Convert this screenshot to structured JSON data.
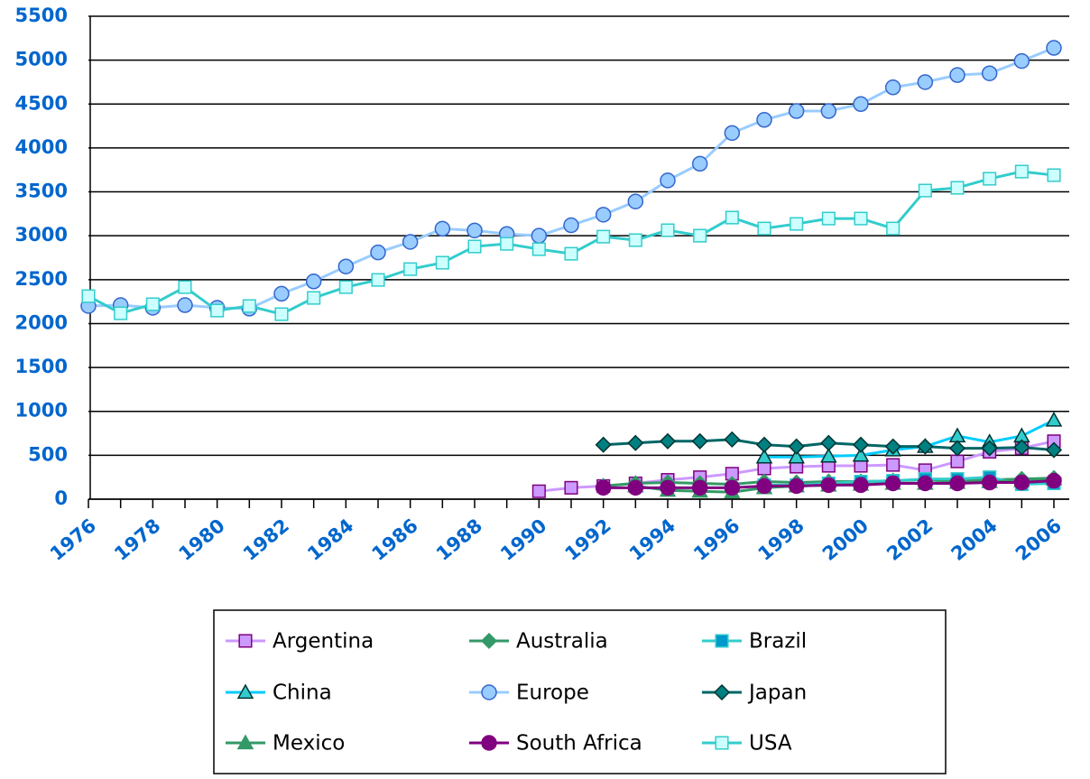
{
  "chart_data": {
    "type": "line",
    "categories": [
      1976,
      null,
      1978,
      null,
      1980,
      null,
      1982,
      null,
      1984,
      null,
      1986,
      null,
      1988,
      null,
      1990,
      null,
      1992,
      null,
      1994,
      null,
      1996,
      null,
      1998,
      null,
      2000,
      null,
      2002,
      null,
      2004,
      null,
      2006
    ],
    "ylim": [
      0,
      5500
    ],
    "yticks": [
      0,
      500,
      1000,
      1500,
      2000,
      2500,
      3000,
      3500,
      4000,
      4500,
      5000,
      5500
    ],
    "grid": true,
    "legend": "bottom",
    "series": [
      {
        "name": "Argentina",
        "color": "#cc99ff",
        "marker": "square",
        "marker_color": "#cc99ff",
        "marker_edge": "#800080",
        "values": [
          null,
          null,
          null,
          null,
          null,
          null,
          null,
          null,
          null,
          null,
          null,
          null,
          null,
          null,
          90,
          130,
          150,
          180,
          220,
          250,
          290,
          350,
          370,
          380,
          380,
          390,
          330,
          430,
          540,
          580,
          660
        ]
      },
      {
        "name": "Australia",
        "color": "#339966",
        "marker": "diamond",
        "marker_color": "#339966",
        "marker_edge": "#339966",
        "values": [
          null,
          null,
          null,
          null,
          null,
          null,
          null,
          null,
          null,
          null,
          null,
          null,
          null,
          null,
          null,
          null,
          150,
          180,
          190,
          180,
          170,
          200,
          190,
          200,
          200,
          210,
          220,
          210,
          220,
          230,
          240
        ]
      },
      {
        "name": "Brazil",
        "color": "#33cccc",
        "marker": "square",
        "marker_color": "#0099cc",
        "marker_edge": "#33cccc",
        "values": [
          null,
          null,
          null,
          null,
          null,
          null,
          null,
          null,
          null,
          null,
          null,
          null,
          null,
          null,
          null,
          null,
          null,
          null,
          null,
          null,
          null,
          160,
          160,
          180,
          200,
          210,
          230,
          230,
          250,
          170,
          180
        ]
      },
      {
        "name": "China",
        "color": "#00ccff",
        "marker": "triangle",
        "marker_color": "#33cccc",
        "marker_edge": "#003333",
        "values": [
          null,
          null,
          null,
          null,
          null,
          null,
          null,
          null,
          null,
          null,
          null,
          null,
          null,
          null,
          null,
          null,
          null,
          null,
          null,
          null,
          null,
          480,
          480,
          490,
          500,
          560,
          600,
          720,
          650,
          720,
          900
        ]
      },
      {
        "name": "Europe",
        "color": "#99ccff",
        "marker": "circle",
        "marker_color": "#99ccff",
        "marker_edge": "#3366cc",
        "values": [
          2200,
          2210,
          2180,
          2210,
          2180,
          2170,
          2340,
          2480,
          2650,
          2810,
          2930,
          3080,
          3060,
          3020,
          3000,
          3120,
          3240,
          3390,
          3630,
          3820,
          4170,
          4320,
          4420,
          4420,
          4500,
          4690,
          4750,
          4830,
          4850,
          4990,
          5140
        ]
      },
      {
        "name": "Japan",
        "color": "#006666",
        "marker": "diamond",
        "marker_color": "#008080",
        "marker_edge": "#003333",
        "values": [
          null,
          null,
          null,
          null,
          null,
          null,
          null,
          null,
          null,
          null,
          null,
          null,
          null,
          null,
          null,
          null,
          620,
          640,
          660,
          660,
          680,
          620,
          600,
          640,
          620,
          600,
          600,
          580,
          580,
          590,
          560
        ]
      },
      {
        "name": "Mexico",
        "color": "#339966",
        "marker": "triangle",
        "marker_color": "#339966",
        "marker_edge": "#339966",
        "values": [
          null,
          null,
          null,
          null,
          null,
          null,
          null,
          null,
          null,
          null,
          null,
          null,
          null,
          null,
          null,
          null,
          null,
          150,
          100,
          90,
          80,
          130,
          150,
          160,
          170,
          180,
          180,
          190,
          200,
          210,
          230
        ]
      },
      {
        "name": "South Africa",
        "color": "#800080",
        "marker": "circle",
        "marker_color": "#800080",
        "marker_edge": "#800080",
        "values": [
          null,
          null,
          null,
          null,
          null,
          null,
          null,
          null,
          null,
          null,
          null,
          null,
          null,
          null,
          null,
          null,
          130,
          130,
          130,
          130,
          130,
          150,
          150,
          160,
          160,
          180,
          180,
          180,
          190,
          190,
          210
        ]
      },
      {
        "name": "USA",
        "color": "#33cccc",
        "marker": "square",
        "marker_color": "#ccffff",
        "marker_edge": "#33cccc",
        "values": [
          2312,
          2117,
          2220,
          2415,
          2148,
          2200,
          2107,
          2292,
          2415,
          2497,
          2620,
          2693,
          2878,
          2908,
          2847,
          2795,
          2990,
          2950,
          3063,
          3001,
          3207,
          3083,
          3135,
          3196,
          3196,
          3083,
          3515,
          3546,
          3649,
          3731,
          3690
        ]
      }
    ]
  }
}
